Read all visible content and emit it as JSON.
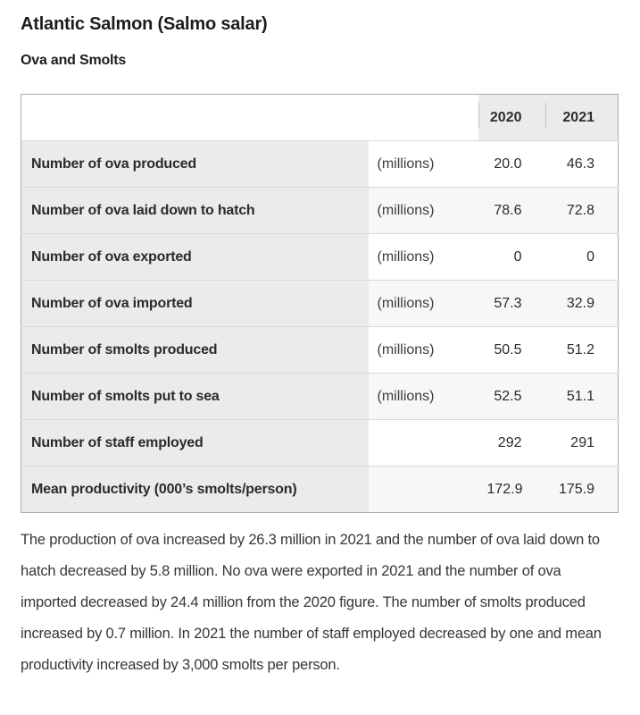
{
  "header": {
    "title": "Atlantic Salmon (Salmo salar)",
    "subtitle": "Ova and Smolts"
  },
  "chart_data": {
    "type": "table",
    "title": "Atlantic Salmon (Salmo salar) — Ova and Smolts",
    "column_headers": {
      "label": "",
      "unit": "",
      "y2020": "2020",
      "y2021": "2021"
    },
    "rows": [
      {
        "label": "Number of ova produced",
        "unit": "(millions)",
        "y2020": "20.0",
        "y2021": "46.3"
      },
      {
        "label": "Number of ova laid down to hatch",
        "unit": "(millions)",
        "y2020": "78.6",
        "y2021": "72.8"
      },
      {
        "label": "Number of ova exported",
        "unit": "(millions)",
        "y2020": "0",
        "y2021": "0"
      },
      {
        "label": "Number of ova imported",
        "unit": "(millions)",
        "y2020": "57.3",
        "y2021": "32.9"
      },
      {
        "label": "Number of smolts produced",
        "unit": "(millions)",
        "y2020": "50.5",
        "y2021": "51.2"
      },
      {
        "label": "Number of smolts put to sea",
        "unit": "(millions)",
        "y2020": "52.5",
        "y2021": "51.1"
      },
      {
        "label": "Number of staff employed",
        "unit": "",
        "y2020": "292",
        "y2021": "291"
      },
      {
        "label": "Mean productivity (000’s smolts/person)",
        "unit": "",
        "y2020": "172.9",
        "y2021": "175.9"
      }
    ]
  },
  "summary": {
    "text": "The production of ova increased by 26.3 million in 2021 and the number of ova laid down to hatch decreased by 5.8 million. No ova were exported in 2021 and the number of ova imported decreased by 24.4 million from the 2020 figure. The number of smolts produced increased by 0.7 million. In 2021 the number of staff employed decreased by one and mean productivity increased by 3,000 smolts per person."
  },
  "colors": {
    "label_cell_bg": "#ebebeb",
    "year_header_bg": "#ebebeb",
    "stripe_bg": "#f7f7f7",
    "row_border": "#d8d8d8",
    "table_border": "#ababab",
    "text": "#2b2b2b"
  }
}
